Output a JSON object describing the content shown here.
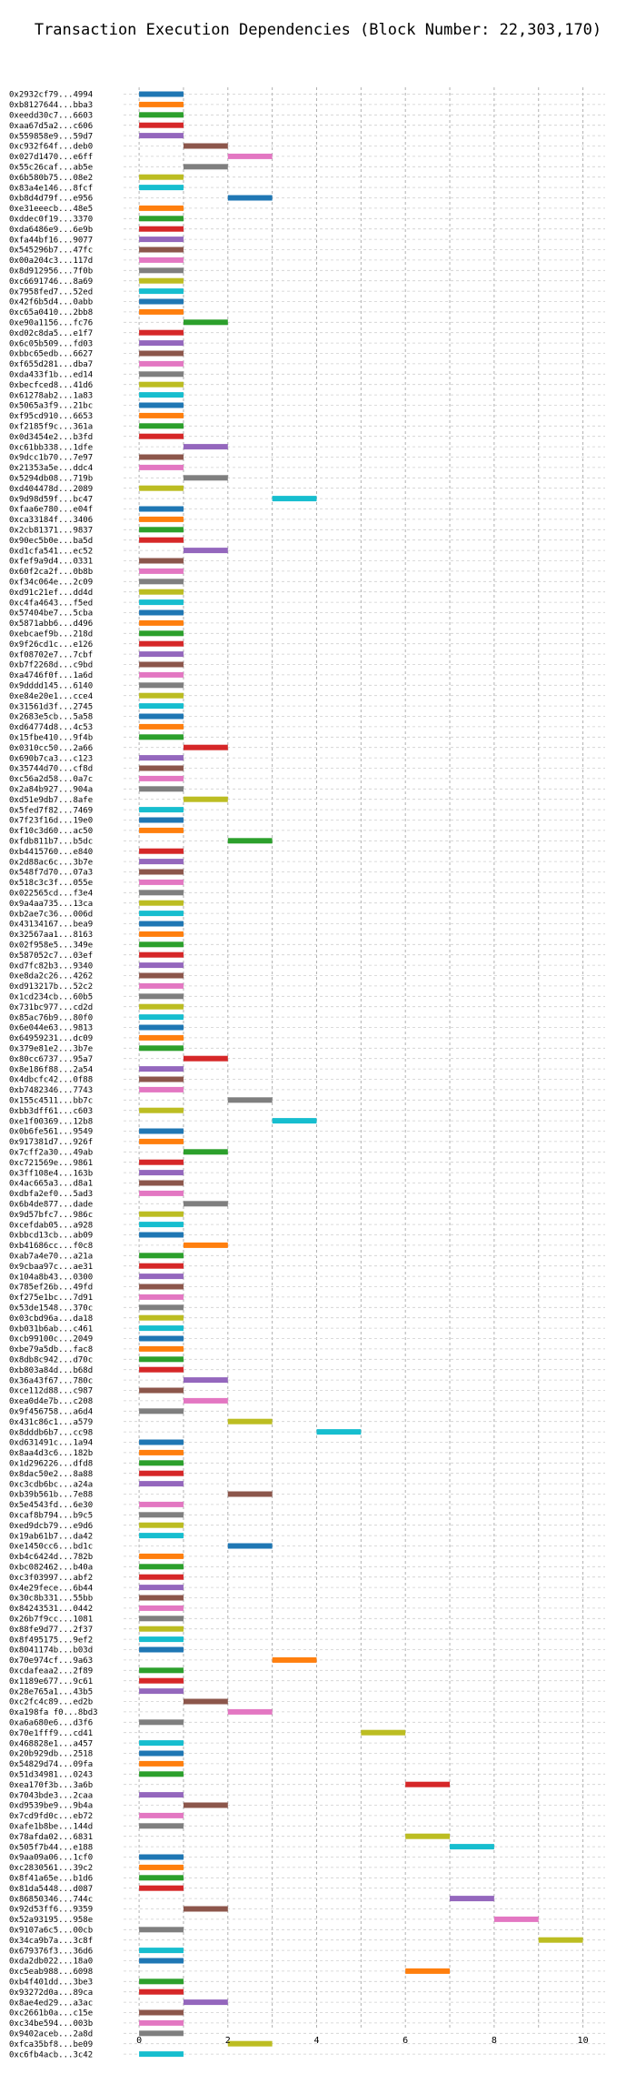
{
  "chart_data": {
    "type": "bar",
    "orientation": "horizontal-gantt",
    "title": "Transaction Execution Dependencies (Block Number: 22,303,170)",
    "xlabel": "",
    "ylabel": "",
    "xlim": [
      -0.35,
      10.5
    ],
    "xticks": [
      0,
      2,
      4,
      6,
      8,
      10
    ],
    "grid": true,
    "palette": [
      "#1f77b4",
      "#ff7f0e",
      "#2ca02c",
      "#d62728",
      "#9467bd",
      "#8c564b",
      "#e377c2",
      "#7f7f7f",
      "#bcbd22",
      "#17becf"
    ],
    "transactions": [
      {
        "label": "0x2932cf79...4994",
        "start": 0,
        "color_index": 0
      },
      {
        "label": "0xb8127644...bba3",
        "start": 0,
        "color_index": 1
      },
      {
        "label": "0xeedd30c7...6603",
        "start": 0,
        "color_index": 2
      },
      {
        "label": "0xaa67d5a2...c606",
        "start": 0,
        "color_index": 3
      },
      {
        "label": "0x559858e9...59d7",
        "start": 0,
        "color_index": 4
      },
      {
        "label": "0xc932f64f...deb0",
        "start": 1,
        "color_index": 5
      },
      {
        "label": "0x027d1470...e6ff",
        "start": 2,
        "color_index": 6
      },
      {
        "label": "0x55c26caf...ab5e",
        "start": 1,
        "color_index": 7
      },
      {
        "label": "0x6b580b75...08e2",
        "start": 0,
        "color_index": 8
      },
      {
        "label": "0x83a4e146...8fcf",
        "start": 0,
        "color_index": 9
      },
      {
        "label": "0xb8d4d79f...e956",
        "start": 2,
        "color_index": 0
      },
      {
        "label": "0xe31eeecb...48e5",
        "start": 0,
        "color_index": 1
      },
      {
        "label": "0xddec0f19...3370",
        "start": 0,
        "color_index": 2
      },
      {
        "label": "0xda6486e9...6e9b",
        "start": 0,
        "color_index": 3
      },
      {
        "label": "0xfa44bf16...9077",
        "start": 0,
        "color_index": 4
      },
      {
        "label": "0x545296b7...47fc",
        "start": 0,
        "color_index": 5
      },
      {
        "label": "0x00a204c3...117d",
        "start": 0,
        "color_index": 6
      },
      {
        "label": "0x8d912956...7f0b",
        "start": 0,
        "color_index": 7
      },
      {
        "label": "0xc6691746...8a69",
        "start": 0,
        "color_index": 8
      },
      {
        "label": "0x7958fed7...52ed",
        "start": 0,
        "color_index": 9
      },
      {
        "label": "0x42f6b5d4...0abb",
        "start": 0,
        "color_index": 0
      },
      {
        "label": "0xc65a0410...2bb8",
        "start": 0,
        "color_index": 1
      },
      {
        "label": "0xe90a1156...fc76",
        "start": 1,
        "color_index": 2
      },
      {
        "label": "0xd02c8da5...e1f7",
        "start": 0,
        "color_index": 3
      },
      {
        "label": "0x6c05b509...fd03",
        "start": 0,
        "color_index": 4
      },
      {
        "label": "0xbbc65edb...6627",
        "start": 0,
        "color_index": 5
      },
      {
        "label": "0xf655d281...dba7",
        "start": 0,
        "color_index": 6
      },
      {
        "label": "0xda433f1b...ed14",
        "start": 0,
        "color_index": 7
      },
      {
        "label": "0xbecfced8...41d6",
        "start": 0,
        "color_index": 8
      },
      {
        "label": "0x61278ab2...1a83",
        "start": 0,
        "color_index": 9
      },
      {
        "label": "0x5065a3f9...21bc",
        "start": 0,
        "color_index": 0
      },
      {
        "label": "0xf95cd910...6653",
        "start": 0,
        "color_index": 1
      },
      {
        "label": "0xf2185f9c...361a",
        "start": 0,
        "color_index": 2
      },
      {
        "label": "0x0d3454e2...b3fd",
        "start": 0,
        "color_index": 3
      },
      {
        "label": "0xc61bb338...1dfe",
        "start": 1,
        "color_index": 4
      },
      {
        "label": "0x9dcc1b70...7e97",
        "start": 0,
        "color_index": 5
      },
      {
        "label": "0x21353a5e...ddc4",
        "start": 0,
        "color_index": 6
      },
      {
        "label": "0x5294db08...719b",
        "start": 1,
        "color_index": 7
      },
      {
        "label": "0xd404478d...2089",
        "start": 0,
        "color_index": 8
      },
      {
        "label": "0x9d98d59f...bc47",
        "start": 3,
        "color_index": 9
      },
      {
        "label": "0xfaa6e780...e04f",
        "start": 0,
        "color_index": 0
      },
      {
        "label": "0xca33184f...3406",
        "start": 0,
        "color_index": 1
      },
      {
        "label": "0x2cb81371...9837",
        "start": 0,
        "color_index": 2
      },
      {
        "label": "0x90ec5b0e...ba5d",
        "start": 0,
        "color_index": 3
      },
      {
        "label": "0xd1cfa541...ec52",
        "start": 1,
        "color_index": 4
      },
      {
        "label": "0xfef9a9d4...0331",
        "start": 0,
        "color_index": 5
      },
      {
        "label": "0x60f2ca2f...0b8b",
        "start": 0,
        "color_index": 6
      },
      {
        "label": "0xf34c064e...2c09",
        "start": 0,
        "color_index": 7
      },
      {
        "label": "0xd91c21ef...dd4d",
        "start": 0,
        "color_index": 8
      },
      {
        "label": "0xc4fa4643...f5ed",
        "start": 0,
        "color_index": 9
      },
      {
        "label": "0x57404be7...5cba",
        "start": 0,
        "color_index": 0
      },
      {
        "label": "0x5871abb6...d496",
        "start": 0,
        "color_index": 1
      },
      {
        "label": "0xebcaef9b...218d",
        "start": 0,
        "color_index": 2
      },
      {
        "label": "0x9f26cd1c...e126",
        "start": 0,
        "color_index": 3
      },
      {
        "label": "0xf08702e7...7cbf",
        "start": 0,
        "color_index": 4
      },
      {
        "label": "0xb7f2268d...c9bd",
        "start": 0,
        "color_index": 5
      },
      {
        "label": "0xa4746f0f...1a6d",
        "start": 0,
        "color_index": 6
      },
      {
        "label": "0x9dddd145...6140",
        "start": 0,
        "color_index": 7
      },
      {
        "label": "0xe84e20e1...cce4",
        "start": 0,
        "color_index": 8
      },
      {
        "label": "0x31561d3f...2745",
        "start": 0,
        "color_index": 9
      },
      {
        "label": "0x2683e5cb...5a58",
        "start": 0,
        "color_index": 0
      },
      {
        "label": "0xd64774d8...4c53",
        "start": 0,
        "color_index": 1
      },
      {
        "label": "0x15fbe410...9f4b",
        "start": 0,
        "color_index": 2
      },
      {
        "label": "0x0310cc50...2a66",
        "start": 1,
        "color_index": 3
      },
      {
        "label": "0x690b7ca3...c123",
        "start": 0,
        "color_index": 4
      },
      {
        "label": "0x35744d70...cf8d",
        "start": 0,
        "color_index": 5
      },
      {
        "label": "0xc56a2d58...0a7c",
        "start": 0,
        "color_index": 6
      },
      {
        "label": "0x2a84b927...904a",
        "start": 0,
        "color_index": 7
      },
      {
        "label": "0xd51e9db7...8afe",
        "start": 1,
        "color_index": 8
      },
      {
        "label": "0x5fed7f82...7469",
        "start": 0,
        "color_index": 9
      },
      {
        "label": "0x7f23f16d...19e0",
        "start": 0,
        "color_index": 0
      },
      {
        "label": "0xf10c3d60...ac50",
        "start": 0,
        "color_index": 1
      },
      {
        "label": "0xfdb811b7...b5dc",
        "start": 2,
        "color_index": 2
      },
      {
        "label": "0xb4415760...e840",
        "start": 0,
        "color_index": 3
      },
      {
        "label": "0x2d88ac6c...3b7e",
        "start": 0,
        "color_index": 4
      },
      {
        "label": "0x548f7d70...07a3",
        "start": 0,
        "color_index": 5
      },
      {
        "label": "0x518c3c3f...055e",
        "start": 0,
        "color_index": 6
      },
      {
        "label": "0x022565cd...f3e4",
        "start": 0,
        "color_index": 7
      },
      {
        "label": "0x9a4aa735...13ca",
        "start": 0,
        "color_index": 8
      },
      {
        "label": "0xb2ae7c36...006d",
        "start": 0,
        "color_index": 9
      },
      {
        "label": "0x43134167...bea9",
        "start": 0,
        "color_index": 0
      },
      {
        "label": "0x32567aa1...8163",
        "start": 0,
        "color_index": 1
      },
      {
        "label": "0x02f958e5...349e",
        "start": 0,
        "color_index": 2
      },
      {
        "label": "0x587052c7...03ef",
        "start": 0,
        "color_index": 3
      },
      {
        "label": "0xd7fc82b3...9340",
        "start": 0,
        "color_index": 4
      },
      {
        "label": "0xe8da2c26...4262",
        "start": 0,
        "color_index": 5
      },
      {
        "label": "0xd913217b...52c2",
        "start": 0,
        "color_index": 6
      },
      {
        "label": "0x1cd234cb...60b5",
        "start": 0,
        "color_index": 7
      },
      {
        "label": "0x731bc977...cd2d",
        "start": 0,
        "color_index": 8
      },
      {
        "label": "0x85ac76b9...80f0",
        "start": 0,
        "color_index": 9
      },
      {
        "label": "0x6e044e63...9813",
        "start": 0,
        "color_index": 0
      },
      {
        "label": "0x64959231...dc09",
        "start": 0,
        "color_index": 1
      },
      {
        "label": "0x379e81e2...3b7e",
        "start": 0,
        "color_index": 2
      },
      {
        "label": "0x80cc6737...95a7",
        "start": 1,
        "color_index": 3
      },
      {
        "label": "0x8e186f88...2a54",
        "start": 0,
        "color_index": 4
      },
      {
        "label": "0x4dbcfc42...0f88",
        "start": 0,
        "color_index": 5
      },
      {
        "label": "0xb7482346...7743",
        "start": 0,
        "color_index": 6
      },
      {
        "label": "0x155c4511...bb7c",
        "start": 2,
        "color_index": 7
      },
      {
        "label": "0xbb3dff61...c603",
        "start": 0,
        "color_index": 8
      },
      {
        "label": "0xe1f00369...12b8",
        "start": 3,
        "color_index": 9
      },
      {
        "label": "0x0b6fe561...9549",
        "start": 0,
        "color_index": 0
      },
      {
        "label": "0x917381d7...926f",
        "start": 0,
        "color_index": 1
      },
      {
        "label": "0x7cff2a30...49ab",
        "start": 1,
        "color_index": 2
      },
      {
        "label": "0xc721569e...9861",
        "start": 0,
        "color_index": 3
      },
      {
        "label": "0x3ff108e4...163b",
        "start": 0,
        "color_index": 4
      },
      {
        "label": "0x4ac665a3...d8a1",
        "start": 0,
        "color_index": 5
      },
      {
        "label": "0xdbfa2ef0...5ad3",
        "start": 0,
        "color_index": 6
      },
      {
        "label": "0x6b4de877...dade",
        "start": 1,
        "color_index": 7
      },
      {
        "label": "0x9d57bfc7...986c",
        "start": 0,
        "color_index": 8
      },
      {
        "label": "0xcefdab05...a928",
        "start": 0,
        "color_index": 9
      },
      {
        "label": "0xbbcd13cb...ab09",
        "start": 0,
        "color_index": 0
      },
      {
        "label": "0xb41686cc...f0c8",
        "start": 1,
        "color_index": 1
      },
      {
        "label": "0xab7a4e70...a21a",
        "start": 0,
        "color_index": 2
      },
      {
        "label": "0x9cbaa97c...ae31",
        "start": 0,
        "color_index": 3
      },
      {
        "label": "0x104a8b43...0300",
        "start": 0,
        "color_index": 4
      },
      {
        "label": "0x785ef26b...49fd",
        "start": 0,
        "color_index": 5
      },
      {
        "label": "0xf275e1bc...7d91",
        "start": 0,
        "color_index": 6
      },
      {
        "label": "0x53de1548...370c",
        "start": 0,
        "color_index": 7
      },
      {
        "label": "0x03cbd96a...da18",
        "start": 0,
        "color_index": 8
      },
      {
        "label": "0xb031b6ab...c461",
        "start": 0,
        "color_index": 9
      },
      {
        "label": "0xcb99100c...2049",
        "start": 0,
        "color_index": 0
      },
      {
        "label": "0xbe79a5db...fac8",
        "start": 0,
        "color_index": 1
      },
      {
        "label": "0x8db8c942...d70c",
        "start": 0,
        "color_index": 2
      },
      {
        "label": "0xb803a84d...b68d",
        "start": 0,
        "color_index": 3
      },
      {
        "label": "0x36a43f67...780c",
        "start": 1,
        "color_index": 4
      },
      {
        "label": "0xce112d88...c987",
        "start": 0,
        "color_index": 5
      },
      {
        "label": "0xea0d4e7b...c208",
        "start": 1,
        "color_index": 6
      },
      {
        "label": "0x9f456758...a6d4",
        "start": 0,
        "color_index": 7
      },
      {
        "label": "0x431c86c1...a579",
        "start": 2,
        "color_index": 8
      },
      {
        "label": "0x8dddb6b7...cc98",
        "start": 4,
        "color_index": 9
      },
      {
        "label": "0xd631491c...1a94",
        "start": 0,
        "color_index": 0
      },
      {
        "label": "0x8aa4d3c6...182b",
        "start": 0,
        "color_index": 1
      },
      {
        "label": "0x1d296226...dfd8",
        "start": 0,
        "color_index": 2
      },
      {
        "label": "0x8dac50e2...8a88",
        "start": 0,
        "color_index": 3
      },
      {
        "label": "0xc3cdb6bc...a24a",
        "start": 0,
        "color_index": 4
      },
      {
        "label": "0xb39b561b...7e88",
        "start": 2,
        "color_index": 5
      },
      {
        "label": "0x5e4543fd...6e30",
        "start": 0,
        "color_index": 6
      },
      {
        "label": "0xcaf8b794...b9c5",
        "start": 0,
        "color_index": 7
      },
      {
        "label": "0xed9dcb79...e9d6",
        "start": 0,
        "color_index": 8
      },
      {
        "label": "0x19ab61b7...da42",
        "start": 0,
        "color_index": 9
      },
      {
        "label": "0xe1450cc6...bd1c",
        "start": 2,
        "color_index": 0
      },
      {
        "label": "0xb4c6424d...782b",
        "start": 0,
        "color_index": 1
      },
      {
        "label": "0xbc082462...b40a",
        "start": 0,
        "color_index": 2
      },
      {
        "label": "0xc3f03997...abf2",
        "start": 0,
        "color_index": 3
      },
      {
        "label": "0x4e29fece...6b44",
        "start": 0,
        "color_index": 4
      },
      {
        "label": "0x30c8b331...55bb",
        "start": 0,
        "color_index": 5
      },
      {
        "label": "0x84243531...0442",
        "start": 0,
        "color_index": 6
      },
      {
        "label": "0x26b7f9cc...1081",
        "start": 0,
        "color_index": 7
      },
      {
        "label": "0x88fe9d77...2f37",
        "start": 0,
        "color_index": 8
      },
      {
        "label": "0x8f495175...9ef2",
        "start": 0,
        "color_index": 9
      },
      {
        "label": "0x8041174b...b03d",
        "start": 0,
        "color_index": 0
      },
      {
        "label": "0x70e974cf...9a63",
        "start": 3,
        "color_index": 1
      },
      {
        "label": "0xcdafeaa2...2f89",
        "start": 0,
        "color_index": 2
      },
      {
        "label": "0x1189e677...9c61",
        "start": 0,
        "color_index": 3
      },
      {
        "label": "0x28e765a1...43b5",
        "start": 0,
        "color_index": 4
      },
      {
        "label": "0xc2fc4c89...ed2b",
        "start": 1,
        "color_index": 5
      },
      {
        "label": "0xa198fa f0...8bd3",
        "start": 2,
        "color_index": 6
      },
      {
        "label": "0xa6a680e6...d3f6",
        "start": 0,
        "color_index": 7
      },
      {
        "label": "0x70e1fff9...cd41",
        "start": 5,
        "color_index": 8
      },
      {
        "label": "0x468828e1...a457",
        "start": 0,
        "color_index": 9
      },
      {
        "label": "0x20b929db...2518",
        "start": 0,
        "color_index": 0
      },
      {
        "label": "0x54829d74...09fa",
        "start": 0,
        "color_index": 1
      },
      {
        "label": "0x51d34981...0243",
        "start": 0,
        "color_index": 2
      },
      {
        "label": "0xea170f3b...3a6b",
        "start": 6,
        "color_index": 3
      },
      {
        "label": "0x7043bde3...2caa",
        "start": 0,
        "color_index": 4
      },
      {
        "label": "0xd9539be9...9b4a",
        "start": 1,
        "color_index": 5
      },
      {
        "label": "0x7cd9fd0c...eb72",
        "start": 0,
        "color_index": 6
      },
      {
        "label": "0xafe1b8be...144d",
        "start": 0,
        "color_index": 7
      },
      {
        "label": "0x78afda02...6831",
        "start": 6,
        "color_index": 8
      },
      {
        "label": "0x505f7b44...e188",
        "start": 7,
        "color_index": 9
      },
      {
        "label": "0x9aa09a06...1cf0",
        "start": 0,
        "color_index": 0
      },
      {
        "label": "0xc2830561...39c2",
        "start": 0,
        "color_index": 1
      },
      {
        "label": "0x8f41a65e...b1d6",
        "start": 0,
        "color_index": 2
      },
      {
        "label": "0x81da5448...d087",
        "start": 0,
        "color_index": 3
      },
      {
        "label": "0x86850346...744c",
        "start": 7,
        "color_index": 4
      },
      {
        "label": "0x92d53ff6...9359",
        "start": 1,
        "color_index": 5
      },
      {
        "label": "0x52a93195...958e",
        "start": 8,
        "color_index": 6
      },
      {
        "label": "0x9107a6c5...00cb",
        "start": 0,
        "color_index": 7
      },
      {
        "label": "0x34ca9b7a...3c8f",
        "start": 9,
        "color_index": 8
      },
      {
        "label": "0x679376f3...36d6",
        "start": 0,
        "color_index": 9
      },
      {
        "label": "0xda2db022...18a0",
        "start": 0,
        "color_index": 0
      },
      {
        "label": "0xc5eab988...6098",
        "start": 6,
        "color_index": 1
      },
      {
        "label": "0xb4f401dd...3be3",
        "start": 0,
        "color_index": 2
      },
      {
        "label": "0x93272d0a...89ca",
        "start": 0,
        "color_index": 3
      },
      {
        "label": "0x8ae4ed29...a3ac",
        "start": 1,
        "color_index": 4
      },
      {
        "label": "0xc2661b0a...c15e",
        "start": 0,
        "color_index": 5
      },
      {
        "label": "0xc34be594...003b",
        "start": 0,
        "color_index": 6
      },
      {
        "label": "0x9402aceb...2a8d",
        "start": 0,
        "color_index": 7
      },
      {
        "label": "0xfca35bf8...be09",
        "start": 2,
        "color_index": 8
      },
      {
        "label": "0xc6fb4acb...3c42",
        "start": 0,
        "color_index": 9
      }
    ]
  }
}
